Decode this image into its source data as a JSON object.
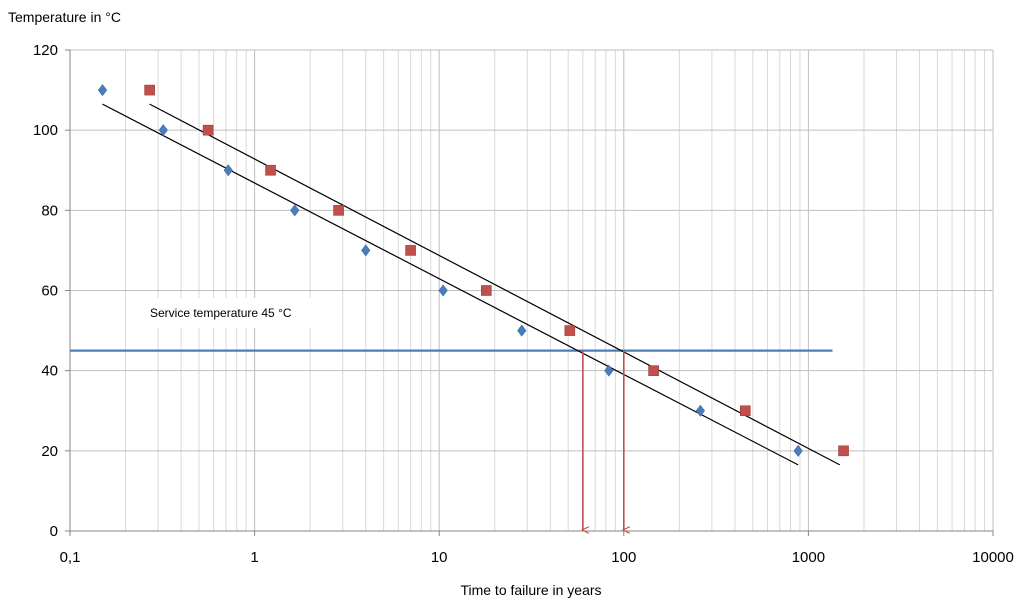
{
  "chart_data": {
    "type": "scatter",
    "x_scale": "log",
    "xlim": [
      0.1,
      10000
    ],
    "ylim": [
      0,
      120
    ],
    "x_ticks": [
      "0,1",
      "1",
      "10",
      "100",
      "1000",
      "10000"
    ],
    "y_ticks": [
      "0",
      "20",
      "40",
      "60",
      "80",
      "100",
      "120"
    ],
    "xlabel": "Time to failure in years",
    "ylabel": "Temperature in °C",
    "grid": true,
    "series": [
      {
        "marker": "diamond",
        "color": "#4a7ebb",
        "points": [
          {
            "x": 0.15,
            "y": 110
          },
          {
            "x": 0.32,
            "y": 100
          },
          {
            "x": 0.72,
            "y": 90
          },
          {
            "x": 1.65,
            "y": 80
          },
          {
            "x": 4.0,
            "y": 70
          },
          {
            "x": 10.5,
            "y": 60
          },
          {
            "x": 28.0,
            "y": 50
          },
          {
            "x": 83.0,
            "y": 40
          },
          {
            "x": 260.0,
            "y": 30
          },
          {
            "x": 880.0,
            "y": 20
          }
        ],
        "trendline": {
          "from": {
            "x": 0.15,
            "y": 106.5
          },
          "to": {
            "x": 880.0,
            "y": 16.5
          }
        }
      },
      {
        "marker": "square",
        "color": "#c0504d",
        "points": [
          {
            "x": 0.27,
            "y": 110
          },
          {
            "x": 0.56,
            "y": 100
          },
          {
            "x": 1.22,
            "y": 90
          },
          {
            "x": 2.85,
            "y": 80
          },
          {
            "x": 7.0,
            "y": 70
          },
          {
            "x": 18.0,
            "y": 60
          },
          {
            "x": 51.0,
            "y": 50
          },
          {
            "x": 145.0,
            "y": 40
          },
          {
            "x": 455.0,
            "y": 30
          },
          {
            "x": 1550.0,
            "y": 20
          }
        ],
        "trendline": {
          "from": {
            "x": 0.27,
            "y": 106.5
          },
          "to": {
            "x": 1480.0,
            "y": 16.5
          }
        }
      }
    ],
    "service_line": {
      "y": 45,
      "x_from": 0.1,
      "x_to": 1350,
      "color": "#4a7ebb"
    },
    "annotation": "Service temperature 45 °C",
    "arrows": [
      {
        "x": 60,
        "y_from": 45,
        "y_to": 0,
        "color": "#c0504d"
      },
      {
        "x": 100,
        "y_from": 45,
        "y_to": 0,
        "color": "#c0504d"
      }
    ]
  }
}
